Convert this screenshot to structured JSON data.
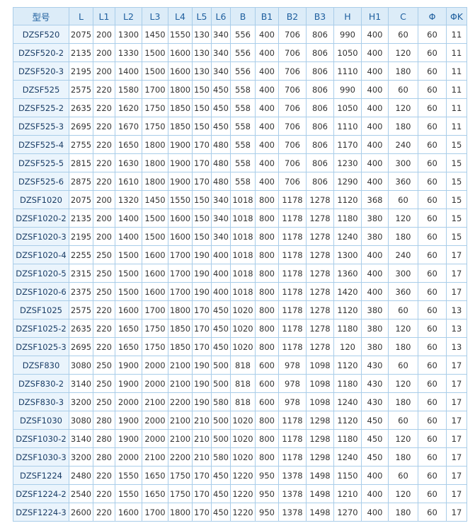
{
  "table": {
    "header": [
      "型号",
      "L",
      "L1",
      "L2",
      "L3",
      "L4",
      "L5",
      "L6",
      "B",
      "B1",
      "B2",
      "B3",
      "H",
      "H1",
      "C",
      "Φ",
      "ΦK"
    ],
    "rows": [
      [
        "DZSF520",
        2075,
        200,
        1300,
        1450,
        1550,
        130,
        340,
        556,
        400,
        706,
        806,
        990,
        400,
        60,
        60,
        11
      ],
      [
        "DZSF520-2",
        2135,
        200,
        1330,
        1500,
        1600,
        130,
        340,
        556,
        400,
        706,
        806,
        1050,
        400,
        120,
        60,
        11
      ],
      [
        "DZSF520-3",
        2195,
        200,
        1400,
        1500,
        1600,
        130,
        340,
        556,
        400,
        706,
        806,
        1110,
        400,
        180,
        60,
        11
      ],
      [
        "DZSF525",
        2575,
        220,
        1580,
        1700,
        1800,
        150,
        450,
        558,
        400,
        706,
        806,
        990,
        400,
        60,
        60,
        11
      ],
      [
        "DZSF525-2",
        2635,
        220,
        1620,
        1750,
        1850,
        150,
        450,
        558,
        400,
        706,
        806,
        1050,
        400,
        120,
        60,
        11
      ],
      [
        "DZSF525-3",
        2695,
        220,
        1670,
        1750,
        1850,
        150,
        450,
        558,
        400,
        706,
        806,
        1110,
        400,
        180,
        60,
        11
      ],
      [
        "DZSF525-4",
        2755,
        220,
        1650,
        1800,
        1900,
        170,
        480,
        558,
        400,
        706,
        806,
        1170,
        400,
        240,
        60,
        15
      ],
      [
        "DZSF525-5",
        2815,
        220,
        1630,
        1800,
        1900,
        170,
        480,
        558,
        400,
        706,
        806,
        1230,
        400,
        300,
        60,
        15
      ],
      [
        "DZSF525-6",
        2875,
        220,
        1610,
        1800,
        1900,
        170,
        480,
        558,
        400,
        706,
        806,
        1290,
        400,
        360,
        60,
        15
      ],
      [
        "DZSF1020",
        2075,
        200,
        1320,
        1450,
        1550,
        150,
        340,
        1018,
        800,
        1178,
        1278,
        1120,
        368,
        60,
        60,
        15
      ],
      [
        "DZSF1020-2",
        2135,
        200,
        1400,
        1500,
        1600,
        150,
        340,
        1018,
        800,
        1178,
        1278,
        1180,
        380,
        120,
        60,
        15
      ],
      [
        "DZSF1020-3",
        2195,
        200,
        1400,
        1500,
        1600,
        150,
        340,
        1018,
        800,
        1178,
        1278,
        1240,
        380,
        180,
        60,
        15
      ],
      [
        "DZSF1020-4",
        2255,
        250,
        1500,
        1600,
        1700,
        190,
        400,
        1018,
        800,
        1178,
        1278,
        1300,
        400,
        240,
        60,
        17
      ],
      [
        "DZSF1020-5",
        2315,
        250,
        1500,
        1600,
        1700,
        190,
        400,
        1018,
        800,
        1178,
        1278,
        1360,
        400,
        300,
        60,
        17
      ],
      [
        "DZSF1020-6",
        2375,
        250,
        1500,
        1600,
        1700,
        190,
        400,
        1018,
        800,
        1178,
        1278,
        1420,
        400,
        360,
        60,
        17
      ],
      [
        "DZSF1025",
        2575,
        220,
        1600,
        1700,
        1800,
        170,
        450,
        1020,
        800,
        1178,
        1278,
        1120,
        380,
        60,
        60,
        13
      ],
      [
        "DZSF1025-2",
        2635,
        220,
        1650,
        1750,
        1850,
        170,
        450,
        1020,
        800,
        1178,
        1278,
        1180,
        380,
        120,
        60,
        13
      ],
      [
        "DZSF1025-3",
        2695,
        220,
        1650,
        1750,
        1850,
        170,
        450,
        1020,
        800,
        1178,
        1278,
        120,
        380,
        180,
        60,
        13
      ],
      [
        "DZSF830",
        3080,
        250,
        1900,
        2000,
        2100,
        190,
        500,
        818,
        600,
        978,
        1098,
        1120,
        430,
        60,
        60,
        17
      ],
      [
        "DZSF830-2",
        3140,
        250,
        1900,
        2000,
        2100,
        190,
        500,
        818,
        600,
        978,
        1098,
        1180,
        430,
        120,
        60,
        17
      ],
      [
        "DZSF830-3",
        3200,
        250,
        2000,
        2100,
        2200,
        190,
        580,
        818,
        600,
        978,
        1098,
        1240,
        430,
        180,
        60,
        17
      ],
      [
        "DZSF1030",
        3080,
        280,
        1900,
        2000,
        2100,
        210,
        500,
        1020,
        800,
        1178,
        1298,
        1120,
        450,
        60,
        60,
        17
      ],
      [
        "DZSF1030-2",
        3140,
        280,
        1900,
        2000,
        2100,
        210,
        500,
        1020,
        800,
        1178,
        1298,
        1180,
        450,
        120,
        60,
        17
      ],
      [
        "DZSF1030-3",
        3200,
        280,
        2000,
        2100,
        2200,
        210,
        580,
        1020,
        800,
        1178,
        1298,
        1240,
        450,
        180,
        60,
        17
      ],
      [
        "DZSF1224",
        2480,
        220,
        1550,
        1650,
        1750,
        170,
        450,
        1220,
        950,
        1378,
        1498,
        1150,
        400,
        60,
        60,
        17
      ],
      [
        "DZSF1224-2",
        2540,
        220,
        1550,
        1650,
        1750,
        170,
        450,
        1220,
        950,
        1378,
        1498,
        1210,
        400,
        120,
        60,
        17
      ],
      [
        "DZSF1224-3",
        2600,
        220,
        1600,
        1700,
        1800,
        170,
        450,
        1220,
        950,
        1378,
        1498,
        1270,
        400,
        180,
        60,
        17
      ]
    ]
  }
}
